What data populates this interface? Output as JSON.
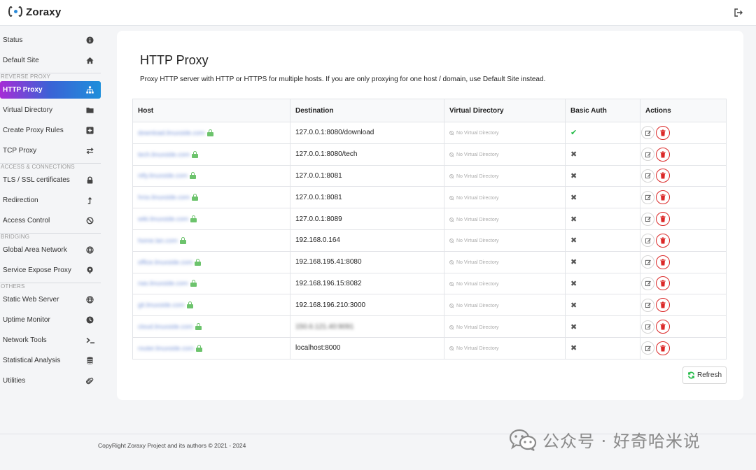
{
  "app": {
    "title": "Zoraxy"
  },
  "sidebar": {
    "items_top": [
      {
        "label": "Status",
        "icon": "info-circle-icon"
      },
      {
        "label": "Default Site",
        "icon": "home-icon"
      }
    ],
    "sections": [
      {
        "title": "REVERSE PROXY",
        "items": [
          {
            "label": "HTTP Proxy",
            "icon": "sitemap-icon",
            "active": true
          },
          {
            "label": "Virtual Directory",
            "icon": "folder-icon"
          },
          {
            "label": "Create Proxy Rules",
            "icon": "plus-square-icon"
          },
          {
            "label": "TCP Proxy",
            "icon": "exchange-icon"
          }
        ]
      },
      {
        "title": "ACCESS & CONNECTIONS",
        "items": [
          {
            "label": "TLS / SSL certificates",
            "icon": "lock-icon"
          },
          {
            "label": "Redirection",
            "icon": "level-up-icon"
          },
          {
            "label": "Access Control",
            "icon": "ban-icon"
          }
        ]
      },
      {
        "title": "BRIDGING",
        "items": [
          {
            "label": "Global Area Network",
            "icon": "globe-icon"
          },
          {
            "label": "Service Expose Proxy",
            "icon": "podcast-icon"
          }
        ]
      },
      {
        "title": "OTHERS",
        "items": [
          {
            "label": "Static Web Server",
            "icon": "globe-icon"
          },
          {
            "label": "Uptime Monitor",
            "icon": "clock-icon"
          },
          {
            "label": "Network Tools",
            "icon": "terminal-icon"
          },
          {
            "label": "Statistical Analysis",
            "icon": "database-icon"
          },
          {
            "label": "Utilities",
            "icon": "paperclip-icon"
          }
        ]
      }
    ]
  },
  "main": {
    "title": "HTTP Proxy",
    "description": "Proxy HTTP server with HTTP or HTTPS for multiple hosts. If you are only proxying for one host / domain, use Default Site instead.",
    "table": {
      "columns": [
        "Host",
        "Destination",
        "Virtual Directory",
        "Basic Auth",
        "Actions"
      ],
      "rows": [
        {
          "host": "download.linuxside.com",
          "destination": "127.0.0.1:8080/download",
          "dest_blurred": false,
          "vdir": "No Virtual Directory",
          "auth": "yes"
        },
        {
          "host": "tech.linuxside.com",
          "destination": "127.0.0.1:8080/tech",
          "dest_blurred": false,
          "vdir": "No Virtual Directory",
          "auth": "no"
        },
        {
          "host": "ntfy.linuxside.com",
          "destination": "127.0.0.1:8081",
          "dest_blurred": false,
          "vdir": "No Virtual Directory",
          "auth": "no"
        },
        {
          "host": "hrss.linuxside.com",
          "destination": "127.0.0.1:8081",
          "dest_blurred": false,
          "vdir": "No Virtual Directory",
          "auth": "no"
        },
        {
          "host": "wiki.linuxside.com",
          "destination": "127.0.0.1:8089",
          "dest_blurred": false,
          "vdir": "No Virtual Directory",
          "auth": "no"
        },
        {
          "host": "home.lan.com",
          "destination": "192.168.0.164",
          "dest_blurred": false,
          "vdir": "No Virtual Directory",
          "auth": "no"
        },
        {
          "host": "office.linuxside.com",
          "destination": "192.168.195.41:8080",
          "dest_blurred": false,
          "vdir": "No Virtual Directory",
          "auth": "no"
        },
        {
          "host": "nas.linuxside.com",
          "destination": "192.168.196.15:8082",
          "dest_blurred": false,
          "vdir": "No Virtual Directory",
          "auth": "no"
        },
        {
          "host": "git.linuxside.com",
          "destination": "192.168.196.210:3000",
          "dest_blurred": false,
          "vdir": "No Virtual Directory",
          "auth": "no"
        },
        {
          "host": "cloud.linuxside.com",
          "destination": "150.6.121.40:9091",
          "dest_blurred": true,
          "vdir": "No Virtual Directory",
          "auth": "no"
        },
        {
          "host": "router.linuxside.com",
          "destination": "localhost:8000",
          "dest_blurred": false,
          "vdir": "No Virtual Directory",
          "auth": "no"
        }
      ]
    },
    "refresh_label": "Refresh"
  },
  "footer": {
    "text": "CopyRight Zoraxy Project and its authors © 2021 - 2024"
  },
  "watermark": {
    "text": "公众号 · 好奇哈米说"
  },
  "colors": {
    "accent_start": "#a62cd6",
    "accent_end": "#1e8fdb",
    "danger": "#db2828",
    "success": "#21ba45",
    "lock": "#6cc36c"
  }
}
